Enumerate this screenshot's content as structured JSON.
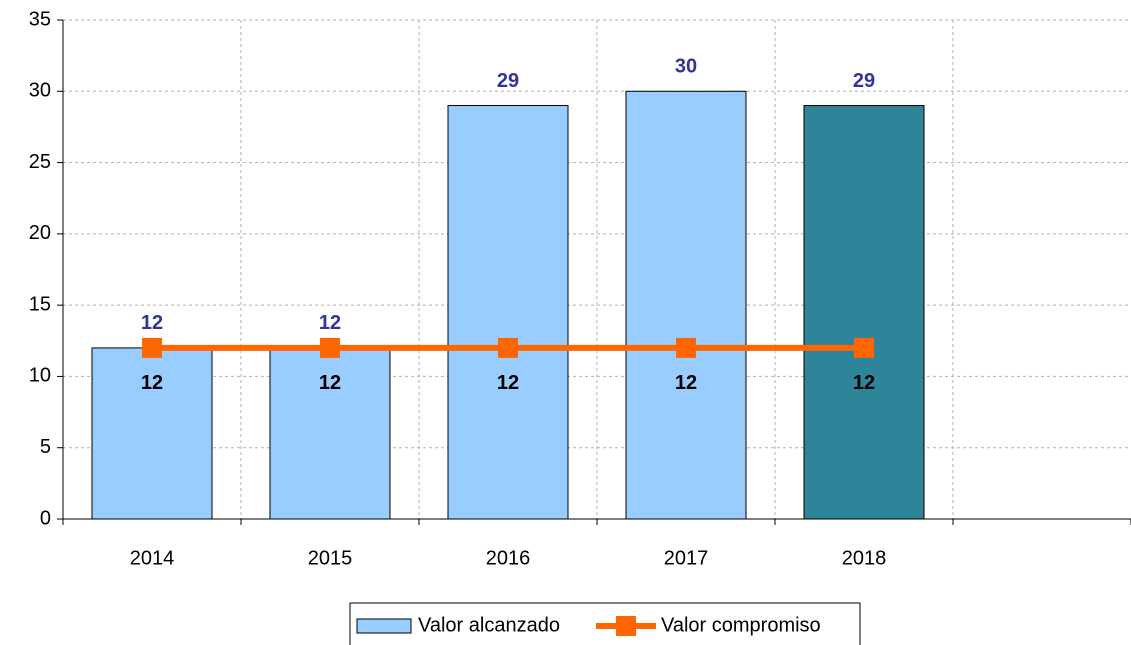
{
  "chart_data": {
    "type": "bar-line",
    "categories": [
      "2014",
      "2015",
      "2016",
      "2017",
      "2018",
      null
    ],
    "series": [
      {
        "name": "Valor alcanzado",
        "type": "bar",
        "color": "#99ccff",
        "colors": [
          "#99ccff",
          "#99ccff",
          "#99ccff",
          "#99ccff",
          "#2e8499",
          null
        ],
        "values": [
          12,
          12,
          29,
          30,
          29,
          null
        ]
      },
      {
        "name": "Valor compromiso",
        "type": "line",
        "color": "#ff6600",
        "values": [
          12,
          12,
          12,
          12,
          12,
          null
        ]
      }
    ],
    "ylim": [
      0,
      35
    ],
    "yticks": [
      0,
      5,
      10,
      15,
      20,
      25,
      30,
      35
    ],
    "grid": true,
    "legend": "bottom"
  }
}
